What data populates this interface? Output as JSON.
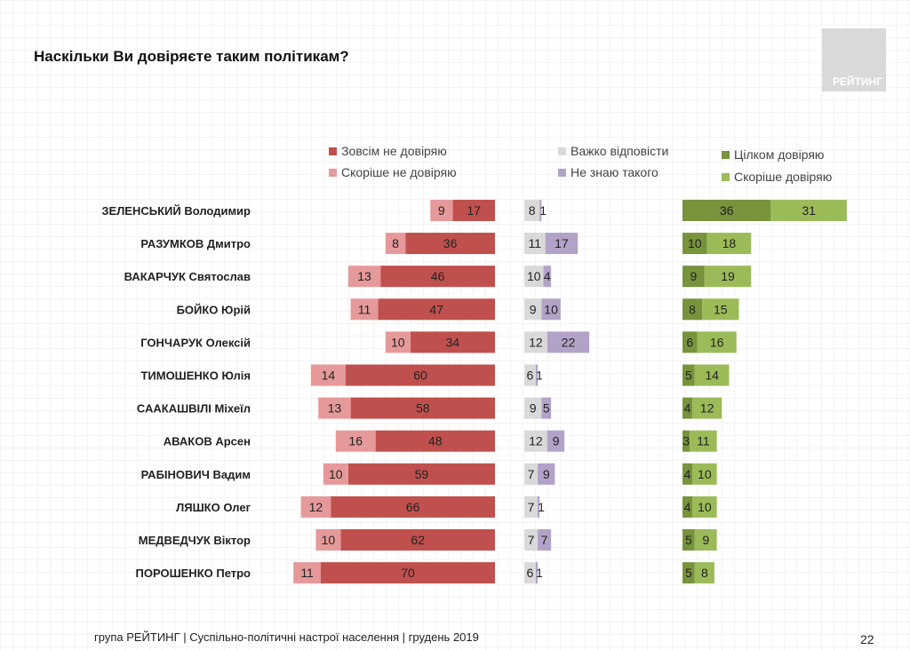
{
  "header": {
    "title": "Наскільки Ви довіряєте таким політикам?",
    "logo_text": "РЕЙТИНГ"
  },
  "footer": {
    "text": "група РЕЙТИНГ | Суспільно-політичні настрої населення  | грудень 2019",
    "page": "22"
  },
  "chart_data": {
    "type": "bar",
    "orientation": "horizontal",
    "stacked_groups": true,
    "categories": [
      "ЗЕЛЕНСЬКИЙ Володимир",
      "РАЗУМКОВ Дмитро",
      "ВАКАРЧУК Святослав",
      "БОЙКО Юрій",
      "ГОНЧАРУК Олексій",
      "ТИМОШЕНКО Юлія",
      "СААКАШВІЛІ Міхеїл",
      "АВАКОВ Арсен",
      "РАБІНОВИЧ Вадим",
      "ЛЯШКО Олег",
      "МЕДВЕДЧУК Віктор",
      "ПОРОШЕНКО Петро"
    ],
    "series": [
      {
        "name": "Зовсім не довіряю",
        "color": "#c0504d",
        "group": "distrust",
        "values": [
          17,
          36,
          46,
          47,
          34,
          60,
          58,
          48,
          59,
          66,
          62,
          70
        ]
      },
      {
        "name": "Скоріше не довіряю",
        "color": "#e6999a",
        "group": "distrust",
        "values": [
          9,
          8,
          13,
          11,
          10,
          14,
          13,
          16,
          10,
          12,
          10,
          11
        ]
      },
      {
        "name": "Важко відповісти",
        "color": "#d9d9d9",
        "group": "neutral",
        "values": [
          8,
          11,
          10,
          9,
          12,
          6,
          9,
          12,
          7,
          7,
          7,
          6
        ]
      },
      {
        "name": "Не знаю такого",
        "color": "#b3a2c7",
        "group": "neutral",
        "values": [
          1,
          17,
          4,
          10,
          22,
          1,
          5,
          9,
          9,
          1,
          7,
          1
        ]
      },
      {
        "name": "Цілком довіряю",
        "color": "#77933c",
        "group": "trust",
        "values": [
          36,
          10,
          9,
          8,
          6,
          5,
          4,
          3,
          4,
          4,
          5,
          5
        ]
      },
      {
        "name": "Скоріше довіряю",
        "color": "#9bbb59",
        "group": "trust",
        "values": [
          31,
          18,
          19,
          15,
          16,
          14,
          12,
          11,
          10,
          10,
          9,
          8
        ]
      }
    ],
    "unit": "%",
    "legend_position": "top",
    "grid": false
  }
}
